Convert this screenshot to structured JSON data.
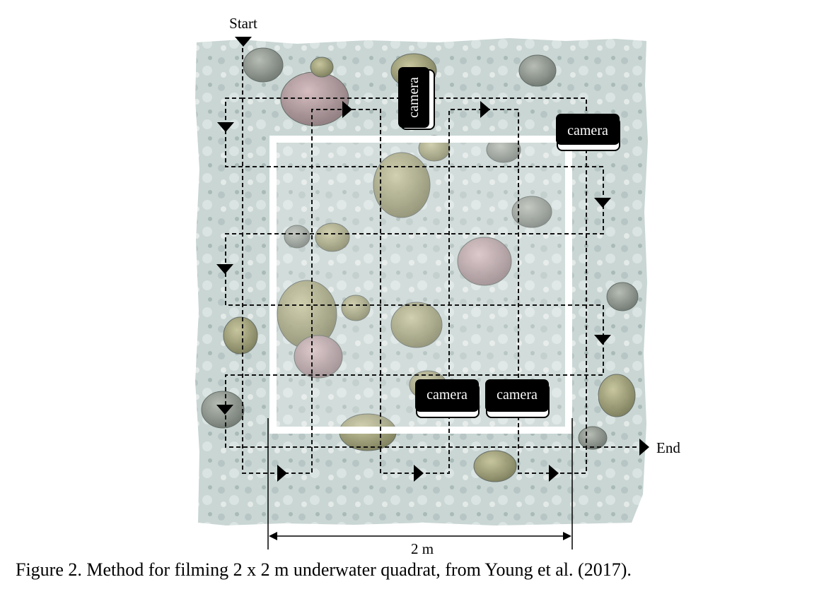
{
  "labels": {
    "start": "Start",
    "end": "End",
    "scale": "2 m",
    "camera": "camera"
  },
  "caption": "Figure 2. Method for filming 2 x 2 m underwater quadrat, from Young et al. (2017).",
  "colors": {
    "seabed": "#c9d6d4",
    "quadrat": "#ffffff",
    "path": "#111111",
    "camera_body": "#000000",
    "camera_text": "#ffffff"
  }
}
